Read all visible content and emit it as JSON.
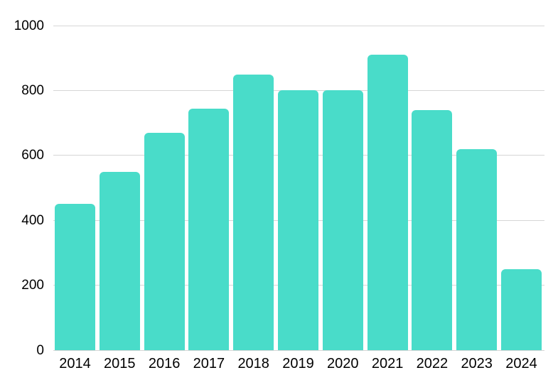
{
  "chart_data": {
    "type": "bar",
    "title": "",
    "xlabel": "",
    "ylabel": "",
    "categories": [
      "2014",
      "2015",
      "2016",
      "2017",
      "2018",
      "2019",
      "2020",
      "2021",
      "2022",
      "2023",
      "2024"
    ],
    "values": [
      450,
      550,
      670,
      745,
      850,
      800,
      800,
      910,
      740,
      620,
      250
    ],
    "ylim": [
      0,
      1000
    ],
    "ytick_interval": 200,
    "ytick_labels": [
      "0",
      "200",
      "400",
      "600",
      "800",
      "1000"
    ],
    "grid": true,
    "legend": false,
    "colors": {
      "bar": "#49DCC9",
      "gridline": "#D6D6D6",
      "axis_text": "#000000",
      "background": "#FFFFFF"
    }
  }
}
